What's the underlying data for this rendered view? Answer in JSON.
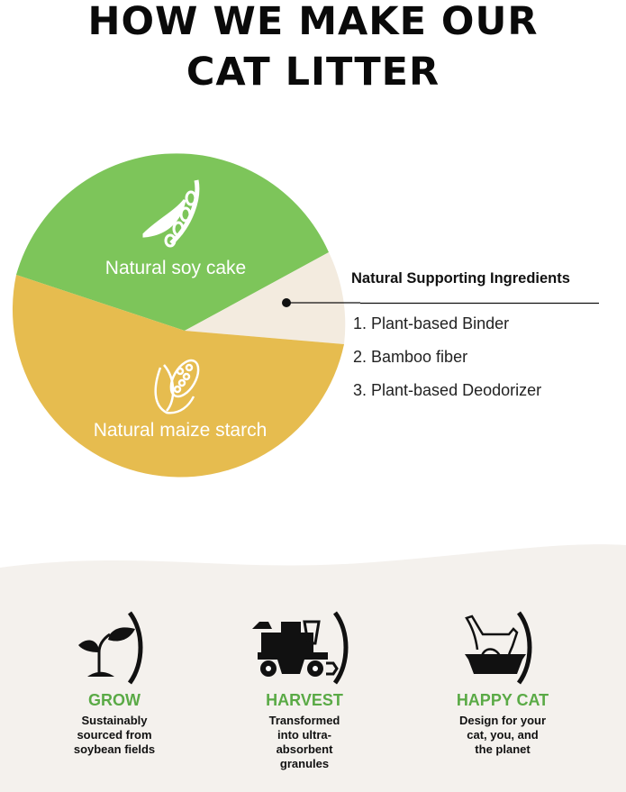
{
  "title_line1": "HOW WE MAKE OUR",
  "title_line2": "CAT LITTER",
  "pie": {
    "slices": [
      {
        "label": "Natural soy cake",
        "color": "#7dc55a",
        "icon": "soybean-pod-icon"
      },
      {
        "label": "",
        "color": "#f3ebdf"
      },
      {
        "label": "Natural maize starch",
        "color": "#e6bc4f",
        "icon": "corn-icon"
      }
    ]
  },
  "legend": {
    "title": "Natural Supporting Ingredients",
    "items": [
      "1. Plant-based Binder",
      "2. Bamboo fiber",
      "3. Plant-based Deodorizer"
    ]
  },
  "steps": [
    {
      "title": "GROW",
      "desc": [
        "Sustainably",
        "sourced from",
        "soybean fields"
      ],
      "icon": "sprout-icon"
    },
    {
      "title": "HARVEST",
      "desc": [
        "Transformed",
        "into ultra-",
        "absorbent",
        "granules"
      ],
      "icon": "harvester-icon"
    },
    {
      "title": "HAPPY CAT",
      "desc": [
        "Design for your",
        "cat, you, and",
        "the planet"
      ],
      "icon": "cat-litter-box-icon"
    }
  ],
  "colors": {
    "accent_green": "#5aaa46",
    "bottom_bg": "#f4f1ed"
  }
}
